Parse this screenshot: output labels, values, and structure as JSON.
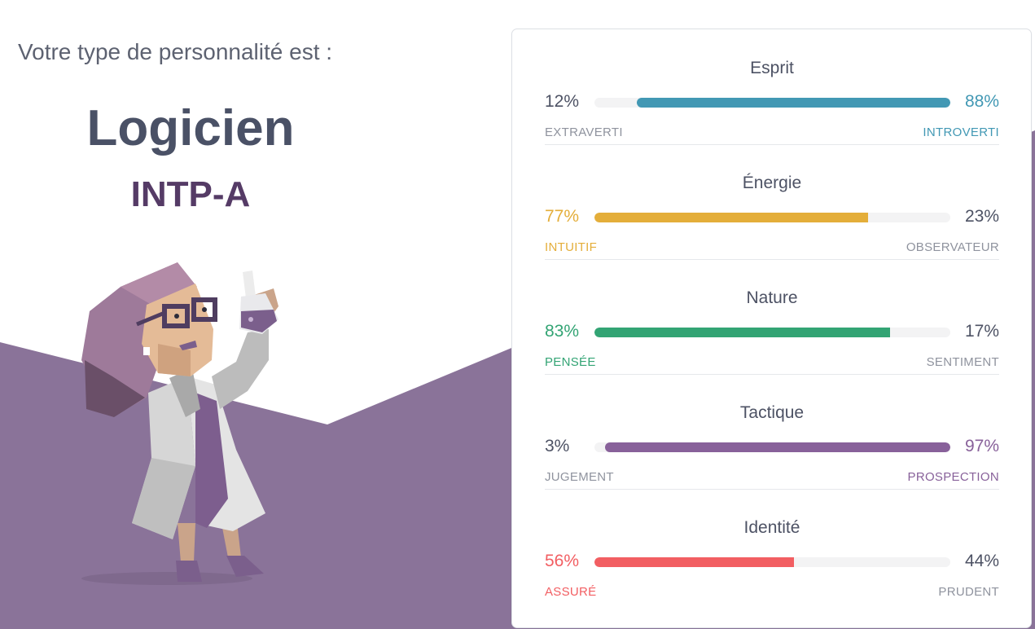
{
  "intro": "Votre type de personnalité est :",
  "type_name": "Logicien",
  "type_code": "INTP-A",
  "colors": {
    "background_shape": "#8a7399",
    "type_code": "#553b66",
    "type_name": "#4a5166",
    "neutral_text": "#4d5264",
    "muted_label": "#8f939e"
  },
  "traits": [
    {
      "title": "Esprit",
      "left_pct": "12%",
      "right_pct": "88%",
      "left_label": "EXTRAVERTI",
      "right_label": "INTROVERTI",
      "dominant": "right",
      "dominant_value": 0.88,
      "color": "#4298b4"
    },
    {
      "title": "Énergie",
      "left_pct": "77%",
      "right_pct": "23%",
      "left_label": "INTUITIF",
      "right_label": "OBSERVATEUR",
      "dominant": "left",
      "dominant_value": 0.77,
      "color": "#e4ae3a"
    },
    {
      "title": "Nature",
      "left_pct": "83%",
      "right_pct": "17%",
      "left_label": "PENSÉE",
      "right_label": "SENTIMENT",
      "dominant": "left",
      "dominant_value": 0.83,
      "color": "#33a474"
    },
    {
      "title": "Tactique",
      "left_pct": "3%",
      "right_pct": "97%",
      "left_label": "JUGEMENT",
      "right_label": "PROSPECTION",
      "dominant": "right",
      "dominant_value": 0.97,
      "color": "#88619a"
    },
    {
      "title": "Identité",
      "left_pct": "56%",
      "right_pct": "44%",
      "left_label": "ASSURÉ",
      "right_label": "PRUDENT",
      "dominant": "left",
      "dominant_value": 0.56,
      "color": "#f25e62"
    }
  ]
}
